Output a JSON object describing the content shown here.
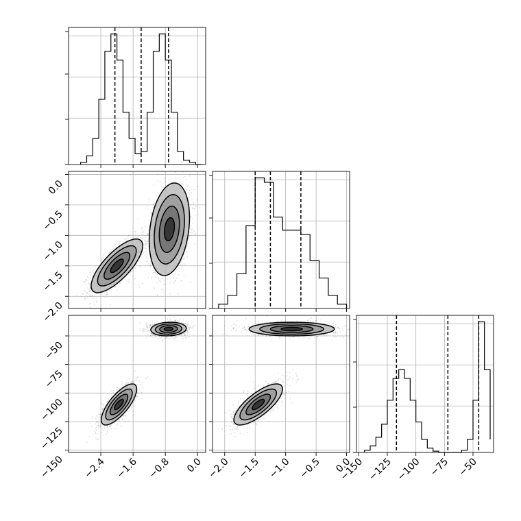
{
  "chart_data": {
    "type": "corner",
    "description_free": true,
    "grid": true,
    "parameters": [
      "p0",
      "p1",
      "p2"
    ],
    "ticks": {
      "p0": {
        "values": [
          -2.4,
          -1.6,
          -0.8,
          0.0
        ],
        "labels": [
          "−2.4",
          "−1.6",
          "−0.8",
          "0.0"
        ]
      },
      "p1": {
        "values": [
          0.0,
          -0.5,
          -1.0,
          -1.5,
          -2.0
        ],
        "labels": [
          "0.0",
          "−0.5",
          "−1.0",
          "−1.5",
          "−2.0"
        ]
      },
      "p1_x": {
        "values": [
          -2.0,
          -1.5,
          -1.0,
          -0.5,
          0.0
        ],
        "labels": [
          "−2.0",
          "−1.5",
          "−1.0",
          "−0.5",
          "0.0"
        ]
      },
      "p2": {
        "values": [
          -50,
          -75,
          -100,
          -125,
          -150
        ],
        "labels": [
          "−50",
          "−75",
          "−100",
          "−125",
          "−150"
        ]
      },
      "p2_x": {
        "values": [
          -150,
          -125,
          -100,
          -75,
          -50
        ],
        "labels": [
          "−150",
          "−125",
          "−100",
          "−75",
          "−50"
        ]
      }
    },
    "ranges": {
      "p0": [
        -3.2,
        0.2
      ],
      "p1": [
        -2.2,
        0.05
      ],
      "p2": [
        -152,
        -32
      ]
    },
    "histograms": [
      {
        "param": "p0",
        "bin_edges": [
          -2.9,
          -2.75,
          -2.6,
          -2.45,
          -2.3,
          -2.15,
          -2.0,
          -1.85,
          -1.7,
          -1.55,
          -1.4,
          -1.25,
          -1.1,
          -0.95,
          -0.8,
          -0.65,
          -0.5,
          -0.35,
          -0.2,
          -0.05,
          0.1
        ],
        "counts": [
          0.5,
          2.0,
          6.0,
          15.0,
          26.0,
          30.0,
          24.0,
          12.0,
          6.0,
          2.5,
          3.0,
          12.0,
          26.0,
          30.0,
          24.0,
          12.0,
          3.0,
          1.0,
          0.5,
          0.0
        ],
        "quantiles": [
          -2.05,
          -1.4,
          -0.72
        ]
      },
      {
        "param": "p1",
        "bin_edges": [
          -2.1,
          -1.95,
          -1.8,
          -1.65,
          -1.5,
          -1.35,
          -1.2,
          -1.05,
          -0.9,
          -0.75,
          -0.6,
          -0.45,
          -0.3,
          -0.15,
          0.0
        ],
        "counts": [
          1.0,
          3.0,
          8.0,
          19.0,
          30.0,
          29.0,
          21.0,
          18.0,
          18.0,
          17.0,
          11.0,
          7.0,
          3.0,
          1.0
        ],
        "quantiles": [
          -1.5,
          -1.25,
          -0.75
        ]
      },
      {
        "param": "p2",
        "bin_edges": [
          -145,
          -140,
          -135,
          -130,
          -125,
          -120,
          -115,
          -110,
          -105,
          -100,
          -95,
          -90,
          -85,
          -80,
          -75,
          -70,
          -65,
          -60,
          -55,
          -50,
          -45,
          -40,
          -35
        ],
        "counts": [
          0.5,
          1.5,
          3.5,
          6.5,
          12.0,
          17.0,
          19.0,
          17.0,
          12.0,
          7.0,
          3.0,
          1.0,
          0.3,
          0.0,
          0.0,
          0.0,
          0.0,
          0.5,
          3.0,
          12.0,
          30.0,
          19.0,
          3.0
        ],
        "quantiles": [
          -117,
          -72,
          -45
        ]
      }
    ],
    "scatter_panels": [
      {
        "x": "p0",
        "y": "p1",
        "clusters": [
          {
            "center": [
              -2.0,
              -1.5
            ],
            "spread": [
              0.32,
              0.22
            ],
            "corr": 0.75
          },
          {
            "center": [
              -0.7,
              -0.9
            ],
            "spread": [
              0.25,
              0.38
            ],
            "corr": 0.25
          }
        ]
      },
      {
        "x": "p0",
        "y": "p2",
        "clusters": [
          {
            "center": [
              -1.95,
              -110
            ],
            "spread": [
              0.22,
              9.0
            ],
            "corr": 0.75
          },
          {
            "center": [
              -0.72,
              -44
            ],
            "spread": [
              0.22,
              3.0
            ],
            "corr": 0.1
          }
        ]
      },
      {
        "x": "p1",
        "y": "p2",
        "clusters": [
          {
            "center": [
              -1.45,
              -110
            ],
            "spread": [
              0.2,
              9.0
            ],
            "corr": 0.75
          },
          {
            "center": [
              -0.9,
              -44
            ],
            "spread": [
              0.35,
              3.0
            ],
            "corr": 0.0
          }
        ]
      }
    ]
  }
}
